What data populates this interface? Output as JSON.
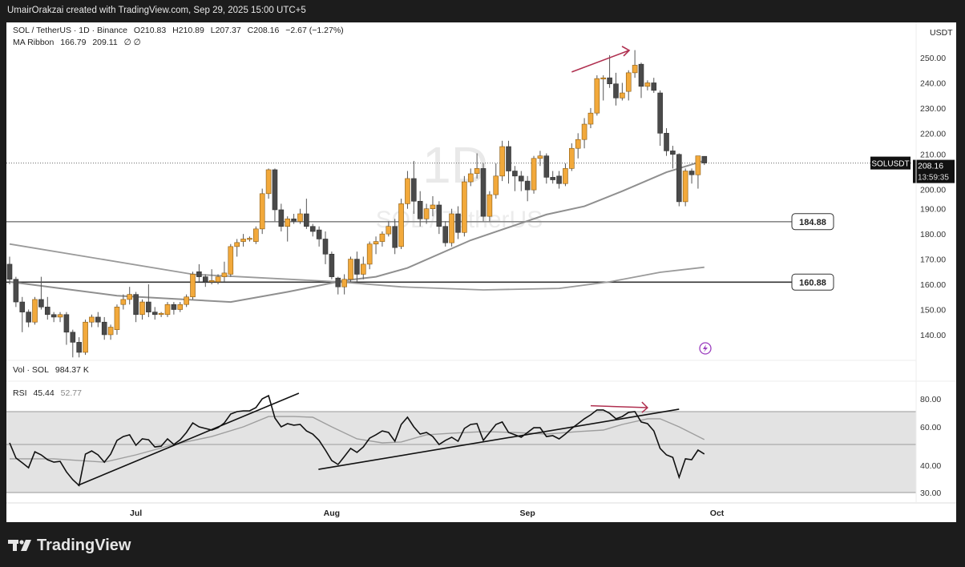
{
  "header": {
    "attribution": "UmairOrakzai created with TradingView.com, Sep 29, 2025 15:00 UTC+5"
  },
  "legend": {
    "symbol": "SOL / TetherUS · 1D · Binance",
    "open": "O210.83",
    "high": "H210.89",
    "low": "L207.37",
    "close": "C208.16",
    "change": "−2.67 (−1.27%)",
    "ma_label": "MA Ribbon",
    "ma1": "166.79",
    "ma2": "209.11",
    "ma_icons": "∅ ∅",
    "vol_label": "Vol · SOL",
    "vol_value": "984.37 K",
    "rsi_label": "RSI",
    "rsi_value": "45.44",
    "rsi_ma_value": "52.77"
  },
  "watermark": {
    "interval": "1D",
    "name": "SOL / TetherUS"
  },
  "price_axis": {
    "currency": "USDT",
    "ticks": [
      "250.00",
      "240.00",
      "230.00",
      "220.00",
      "210.00",
      "200.00",
      "190.00",
      "180.00",
      "170.00",
      "160.00",
      "150.00",
      "140.00"
    ]
  },
  "last_price": {
    "symbol": "SOLUSDT",
    "price": "208.16",
    "countdown": "13:59:35"
  },
  "levels": [
    {
      "value": 184.88,
      "label": "184.88",
      "color": "#8a8a8a"
    },
    {
      "value": 160.88,
      "label": "160.88",
      "color": "#333333"
    }
  ],
  "rsi_axis": {
    "ticks": [
      "80.00",
      "60.00",
      "40.00",
      "30.00"
    ]
  },
  "x_axis": {
    "ticks": [
      {
        "label": "Jul",
        "index": 20
      },
      {
        "label": "Aug",
        "index": 51
      },
      {
        "label": "Sep",
        "index": 82
      },
      {
        "label": "Oct",
        "index": 112
      }
    ]
  },
  "footer": {
    "brand": "TradingView"
  },
  "colors": {
    "up": "#f2a93b",
    "down": "#4a4a4a",
    "wick": "#555555",
    "ma_fast": "#8f8f8f",
    "ma_slow": "#9a9a9a",
    "rsi": "#111111",
    "rsi_ma": "#9e9e9e",
    "rsi_band": "#e3e3e3",
    "annotation": "#b03050",
    "alert": "#9c3fbf"
  },
  "chart_data": {
    "type": "candlestick",
    "title": "SOL / TetherUS · 1D · Binance",
    "ylim": [
      130,
      256
    ],
    "candles": [
      [
        168,
        171,
        160,
        162
      ],
      [
        162,
        163,
        151,
        153
      ],
      [
        153,
        155,
        141,
        149
      ],
      [
        149,
        150,
        143,
        145
      ],
      [
        145,
        155,
        144,
        154
      ],
      [
        154,
        163,
        150,
        151
      ],
      [
        151,
        155,
        146,
        148
      ],
      [
        148,
        149,
        145,
        147
      ],
      [
        147,
        149,
        145,
        148
      ],
      [
        148,
        149,
        136,
        141
      ],
      [
        141,
        142,
        131,
        137
      ],
      [
        137,
        139,
        131,
        133
      ],
      [
        133,
        146,
        132,
        145
      ],
      [
        145,
        148,
        143,
        147
      ],
      [
        147,
        149,
        143,
        145
      ],
      [
        145,
        147,
        138,
        140
      ],
      [
        140,
        144,
        138,
        143
      ],
      [
        142,
        152,
        140,
        151
      ],
      [
        152,
        156,
        150,
        154
      ],
      [
        154,
        159,
        152,
        156
      ],
      [
        156,
        157,
        145,
        148
      ],
      [
        148,
        154,
        146,
        153
      ],
      [
        153,
        160,
        147,
        149
      ],
      [
        149,
        151,
        146,
        148
      ],
      [
        148,
        149,
        147,
        148.5
      ],
      [
        148,
        153,
        147,
        152
      ],
      [
        152,
        153,
        148,
        150
      ],
      [
        150,
        153,
        149,
        152
      ],
      [
        152,
        156,
        151,
        155
      ],
      [
        155,
        165,
        154,
        164
      ],
      [
        165,
        168,
        161,
        163
      ],
      [
        163,
        164,
        159,
        161
      ],
      [
        161,
        166,
        160,
        161.5
      ],
      [
        161,
        164,
        160,
        163
      ],
      [
        163,
        169,
        161,
        164.5
      ],
      [
        164,
        176,
        163,
        175
      ],
      [
        175,
        178,
        171,
        176.6
      ],
      [
        177,
        180,
        175,
        178
      ],
      [
        178,
        179,
        177,
        178.3
      ],
      [
        177,
        183,
        176,
        182
      ],
      [
        182,
        198,
        180,
        196
      ],
      [
        196,
        206,
        194,
        205.5
      ],
      [
        205.5,
        206,
        185,
        189.6
      ],
      [
        189.6,
        192,
        181,
        183
      ],
      [
        183,
        187,
        177,
        186
      ],
      [
        186,
        188,
        184,
        185
      ],
      [
        185,
        190,
        184,
        188
      ],
      [
        188,
        194,
        182,
        183
      ],
      [
        183,
        184,
        179,
        181
      ],
      [
        181.6,
        183,
        175,
        178
      ],
      [
        178,
        181,
        168,
        172
      ],
      [
        172,
        173,
        162,
        163
      ],
      [
        162.5,
        163,
        156,
        159
      ],
      [
        159,
        164,
        156,
        162
      ],
      [
        162,
        171,
        161,
        170
      ],
      [
        170,
        173,
        161,
        164
      ],
      [
        164,
        171,
        162,
        168
      ],
      [
        168,
        177,
        166,
        176
      ],
      [
        176,
        179,
        172,
        177
      ],
      [
        177,
        181,
        175,
        180
      ],
      [
        180,
        185,
        179,
        183
      ],
      [
        183,
        186,
        172,
        174.6
      ],
      [
        175,
        194,
        174,
        192
      ],
      [
        192,
        205,
        190,
        202
      ],
      [
        202,
        209,
        188,
        193
      ],
      [
        193,
        197,
        183,
        186
      ],
      [
        186,
        192,
        184,
        190
      ],
      [
        190,
        195,
        187,
        191.5
      ],
      [
        191.5,
        193,
        180,
        183
      ],
      [
        183,
        185,
        175,
        176.5
      ],
      [
        176.5,
        190,
        175,
        188
      ],
      [
        188,
        191,
        178,
        180.6
      ],
      [
        180.6,
        203,
        179,
        200.7
      ],
      [
        200.7,
        206,
        199,
        203.9
      ],
      [
        204,
        212,
        202,
        206
      ],
      [
        206,
        208,
        185,
        187
      ],
      [
        187,
        197,
        185,
        195.6
      ],
      [
        195.6,
        208,
        194,
        203
      ],
      [
        203,
        217,
        201,
        214.7
      ],
      [
        214.7,
        217,
        200,
        205
      ],
      [
        205,
        207,
        197,
        203
      ],
      [
        203,
        205,
        197,
        201
      ],
      [
        201,
        203,
        193,
        197.5
      ],
      [
        197.5,
        211,
        196,
        210
      ],
      [
        210,
        213,
        207,
        211
      ],
      [
        211,
        212,
        200,
        202.5
      ],
      [
        202.5,
        205,
        200,
        201.5
      ],
      [
        203,
        205,
        198,
        200
      ],
      [
        200,
        208,
        199,
        206
      ],
      [
        206,
        216,
        205,
        214
      ],
      [
        214,
        220,
        210,
        217.5
      ],
      [
        217.5,
        226,
        214,
        223.6
      ],
      [
        223.6,
        230,
        222,
        228
      ],
      [
        228,
        243,
        227,
        241.7
      ],
      [
        241.5,
        243,
        233,
        242
      ],
      [
        242,
        251,
        238,
        239.6
      ],
      [
        239.6,
        244,
        231,
        234
      ],
      [
        234,
        240,
        233,
        236
      ],
      [
        236.6,
        245,
        233,
        244
      ],
      [
        244,
        253,
        242,
        247
      ],
      [
        247.4,
        248,
        234,
        238.6
      ],
      [
        238.6,
        241,
        237,
        240
      ],
      [
        240,
        242,
        236,
        237
      ],
      [
        236,
        237,
        215,
        220
      ],
      [
        220,
        222,
        211,
        213
      ],
      [
        213,
        215,
        206,
        211.6
      ],
      [
        211.6,
        212,
        191,
        192.8
      ],
      [
        192.8,
        206,
        191,
        205
      ],
      [
        205,
        206,
        200,
        203.5
      ],
      [
        203.5,
        211,
        198,
        211
      ],
      [
        210.83,
        210.89,
        207.37,
        208.16
      ]
    ],
    "ma_fast": [
      [
        0,
        161
      ],
      [
        17,
        155.5
      ],
      [
        35,
        153
      ],
      [
        44,
        157
      ],
      [
        53,
        161.5
      ],
      [
        58,
        163
      ],
      [
        63,
        166.5
      ],
      [
        73,
        177.5
      ],
      [
        85,
        187.7
      ],
      [
        91,
        191
      ],
      [
        97,
        197
      ],
      [
        104,
        204.5
      ],
      [
        110,
        209.11
      ]
    ],
    "ma_slow": [
      [
        0,
        176
      ],
      [
        29,
        164
      ],
      [
        52,
        161
      ],
      [
        62,
        159
      ],
      [
        75,
        157.8
      ],
      [
        87,
        158.4
      ],
      [
        95,
        161
      ],
      [
        103,
        164.8
      ],
      [
        110,
        166.79
      ]
    ],
    "price_arrow": [
      [
        89,
        244.3
      ],
      [
        98.1,
        252.9
      ]
    ],
    "rsi": {
      "ylim": [
        30,
        80
      ],
      "bands": [
        70,
        50,
        30
      ],
      "values": [
        50.9,
        43.5,
        41.2,
        39.1,
        46.5,
        45.0,
        42.7,
        41.5,
        41.9,
        37.6,
        34.7,
        32.6,
        45.4,
        46.9,
        45.0,
        41.5,
        45.4,
        52.3,
        54.5,
        55.5,
        49.6,
        53.2,
        52.7,
        48.8,
        49.2,
        53.2,
        50.0,
        52.7,
        56.8,
        62.6,
        60.0,
        59.1,
        58.2,
        59.5,
        62.6,
        68.4,
        70.0,
        70.6,
        70.6,
        73.1,
        80.0,
        82.5,
        65.8,
        60.0,
        62.1,
        61.1,
        61.6,
        57.7,
        55.9,
        52.3,
        47.3,
        42.3,
        40.4,
        44.2,
        48.1,
        46.2,
        48.8,
        53.6,
        55.5,
        57.7,
        56.8,
        51.8,
        61.6,
        66.3,
        60.0,
        55.9,
        56.8,
        54.5,
        50.0,
        52.3,
        54.1,
        51.8,
        59.1,
        61.6,
        62.1,
        52.3,
        56.8,
        61.6,
        63.2,
        56.8,
        55.5,
        54.1,
        56.8,
        59.5,
        59.5,
        54.5,
        55.0,
        53.2,
        55.9,
        59.1,
        62.1,
        65.3,
        67.9,
        71.3,
        71.3,
        68.9,
        65.3,
        66.8,
        69.5,
        70.0,
        63.2,
        62.1,
        57.7,
        48.1,
        45.0,
        43.8,
        35.6,
        43.1,
        42.7,
        47.3,
        45.44
      ],
      "ma": [
        [
          0,
          43.1
        ],
        [
          7,
          43.1
        ],
        [
          15,
          41.5
        ],
        [
          20,
          45.0
        ],
        [
          26,
          50.0
        ],
        [
          32,
          54.5
        ],
        [
          37,
          60.0
        ],
        [
          41,
          66.8
        ],
        [
          45,
          66.8
        ],
        [
          48,
          66.3
        ],
        [
          51,
          60
        ],
        [
          55,
          53.2
        ],
        [
          59,
          50.9
        ],
        [
          62,
          51.4
        ],
        [
          66,
          55.5
        ],
        [
          70,
          56.4
        ],
        [
          75,
          57.3
        ],
        [
          80,
          56.8
        ],
        [
          85,
          55.9
        ],
        [
          90,
          57.3
        ],
        [
          94,
          58.2
        ],
        [
          97,
          61.6
        ],
        [
          101,
          65.3
        ],
        [
          103,
          65.3
        ],
        [
          106,
          60
        ],
        [
          110,
          52.77
        ]
      ],
      "trendlines": [
        [
          [
            10.8,
            32.6
          ],
          [
            45.8,
            84.4
          ]
        ],
        [
          [
            48.9,
            38.5
          ],
          [
            106,
            71.9
          ]
        ]
      ],
      "arrow": [
        [
          92,
          74.6
        ],
        [
          101,
          73.1
        ]
      ]
    }
  }
}
